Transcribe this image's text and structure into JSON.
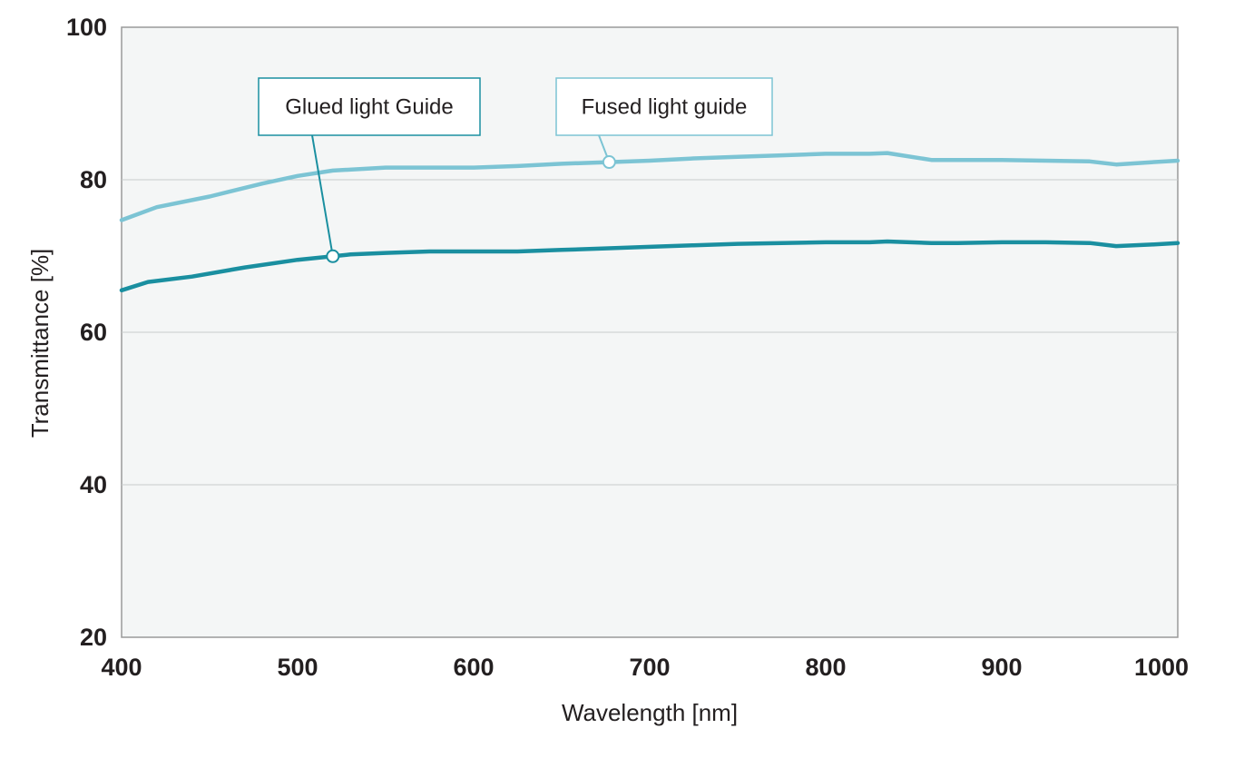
{
  "chart_data": {
    "type": "line",
    "xlabel": "Wavelength [nm]",
    "ylabel": "Transmittance [%]",
    "xlim": [
      400,
      1000
    ],
    "ylim": [
      20,
      100
    ],
    "x_ticks": [
      "400",
      "500",
      "600",
      "700",
      "800",
      "900",
      "1000"
    ],
    "y_ticks": [
      "20",
      "40",
      "60",
      "80",
      "100"
    ],
    "y_tick_values": [
      20,
      40,
      60,
      80,
      100
    ],
    "grid": "horizontal",
    "series": [
      {
        "name": "Glued light Guide",
        "color": "#1a8fa0",
        "x": [
          400,
          415,
          440,
          470,
          500,
          530,
          550,
          575,
          600,
          625,
          650,
          675,
          700,
          725,
          750,
          775,
          800,
          825,
          835,
          860,
          875,
          900,
          925,
          950,
          965,
          985,
          1000
        ],
        "values": [
          65.5,
          66.6,
          67.3,
          68.5,
          69.5,
          70.2,
          70.4,
          70.6,
          70.6,
          70.6,
          70.8,
          71.0,
          71.2,
          71.4,
          71.6,
          71.7,
          71.8,
          71.8,
          71.9,
          71.7,
          71.7,
          71.8,
          71.8,
          71.7,
          71.3,
          71.5,
          71.7
        ]
      },
      {
        "name": "Fused light guide",
        "color": "#7cc4d4",
        "x": [
          400,
          420,
          450,
          480,
          500,
          520,
          550,
          575,
          600,
          625,
          650,
          675,
          700,
          725,
          750,
          775,
          800,
          825,
          835,
          860,
          875,
          900,
          925,
          950,
          965,
          985,
          1000
        ],
        "values": [
          74.7,
          76.4,
          77.8,
          79.5,
          80.5,
          81.2,
          81.6,
          81.6,
          81.6,
          81.8,
          82.1,
          82.3,
          82.5,
          82.8,
          83.0,
          83.2,
          83.4,
          83.4,
          83.5,
          82.6,
          82.6,
          82.6,
          82.5,
          82.4,
          82.0,
          82.3,
          82.5
        ]
      }
    ],
    "annotations": [
      {
        "text": "Glued light Guide",
        "series": 0,
        "at_x": 520
      },
      {
        "text": "Fused light guide",
        "series": 1,
        "at_x": 677
      }
    ]
  }
}
